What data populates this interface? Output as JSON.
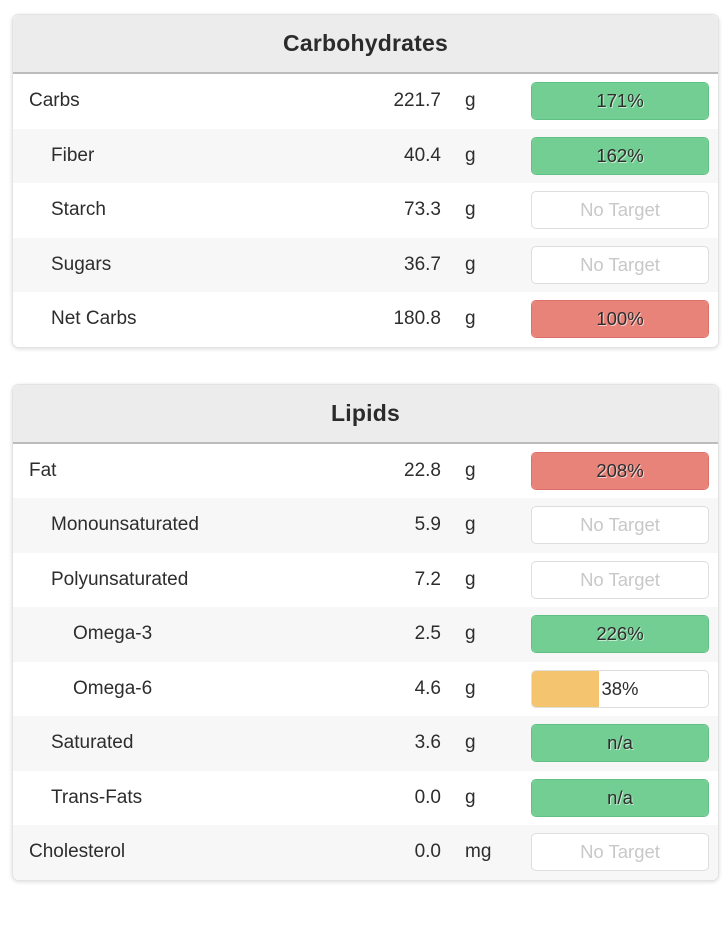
{
  "colors": {
    "green": "#72ce92",
    "green_border": "#5fc183",
    "red": "#e8837a",
    "red_border": "#dd7068",
    "yellow": "#f5c46e",
    "none_border": "#dedede",
    "none_text": "#c8c8c8"
  },
  "cards": [
    {
      "title": "Carbohydrates",
      "rows": [
        {
          "label": "Carbs",
          "value": "221.7",
          "unit": "g",
          "indent": 0,
          "bar": {
            "kind": "full",
            "color": "green",
            "text": "171%"
          }
        },
        {
          "label": "Fiber",
          "value": "40.4",
          "unit": "g",
          "indent": 1,
          "bar": {
            "kind": "full",
            "color": "green",
            "text": "162%"
          }
        },
        {
          "label": "Starch",
          "value": "73.3",
          "unit": "g",
          "indent": 1,
          "bar": {
            "kind": "none",
            "text": "No Target"
          }
        },
        {
          "label": "Sugars",
          "value": "36.7",
          "unit": "g",
          "indent": 1,
          "bar": {
            "kind": "none",
            "text": "No Target"
          }
        },
        {
          "label": "Net Carbs",
          "value": "180.8",
          "unit": "g",
          "indent": 1,
          "bar": {
            "kind": "full",
            "color": "red",
            "text": "100%"
          }
        }
      ]
    },
    {
      "title": "Lipids",
      "rows": [
        {
          "label": "Fat",
          "value": "22.8",
          "unit": "g",
          "indent": 0,
          "bar": {
            "kind": "full",
            "color": "red",
            "text": "208%"
          }
        },
        {
          "label": "Monounsaturated",
          "value": "5.9",
          "unit": "g",
          "indent": 1,
          "bar": {
            "kind": "none",
            "text": "No Target"
          }
        },
        {
          "label": "Polyunsaturated",
          "value": "7.2",
          "unit": "g",
          "indent": 1,
          "bar": {
            "kind": "none",
            "text": "No Target"
          }
        },
        {
          "label": "Omega-3",
          "value": "2.5",
          "unit": "g",
          "indent": 2,
          "bar": {
            "kind": "full",
            "color": "green",
            "text": "226%"
          }
        },
        {
          "label": "Omega-6",
          "value": "4.6",
          "unit": "g",
          "indent": 2,
          "bar": {
            "kind": "partial",
            "color": "yellow",
            "percent": 38,
            "text": "38%"
          }
        },
        {
          "label": "Saturated",
          "value": "3.6",
          "unit": "g",
          "indent": 1,
          "bar": {
            "kind": "full",
            "color": "green",
            "text": "n/a"
          }
        },
        {
          "label": "Trans-Fats",
          "value": "0.0",
          "unit": "g",
          "indent": 1,
          "bar": {
            "kind": "full",
            "color": "green",
            "text": "n/a"
          }
        },
        {
          "label": "Cholesterol",
          "value": "0.0",
          "unit": "mg",
          "indent": 0,
          "bar": {
            "kind": "none",
            "text": "No Target"
          }
        }
      ]
    }
  ]
}
